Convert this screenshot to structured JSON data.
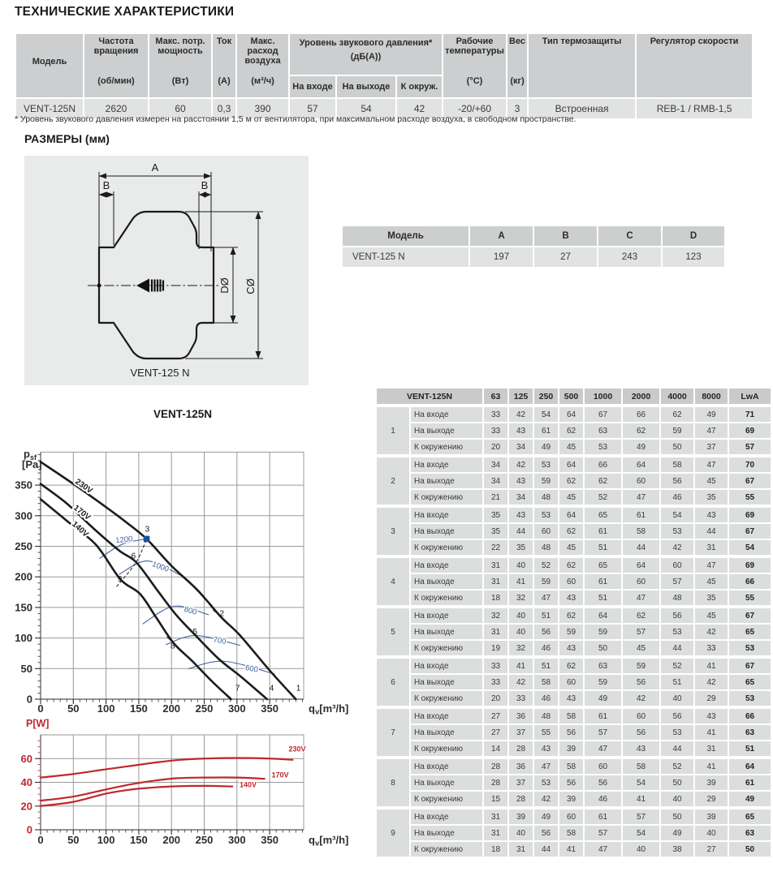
{
  "page": {
    "title": "ТЕХНИЧЕСКИЕ ХАРАКТЕРИСТИКИ",
    "dimensions_heading": "РАЗМЕРЫ (мм)"
  },
  "spec_table": {
    "columns": [
      {
        "name": "Модель",
        "unit": ""
      },
      {
        "name": "Частота вращения",
        "unit": "(об/мин)"
      },
      {
        "name": "Макс. потр. мощность",
        "unit": "(Вт)"
      },
      {
        "name": "Ток",
        "unit": "(А)"
      },
      {
        "name": "Макс. расход воздуха",
        "unit": "(м³/ч)"
      },
      {
        "name": "Уровень звукового давления*",
        "unit": "(дБ(А))",
        "subcolumns": [
          "На входе",
          "На выходе",
          "К окруж."
        ]
      },
      {
        "name": "Рабочие температуры",
        "unit": "(°С)"
      },
      {
        "name": "Вес",
        "unit": "(кг)"
      },
      {
        "name": "Тип термозащиты",
        "unit": ""
      },
      {
        "name": "Регулятор скорости",
        "unit": ""
      }
    ],
    "row": [
      "VENT-125N",
      "2620",
      "60",
      "0,3",
      "390",
      "57",
      "54",
      "42",
      "-20/+60",
      "3",
      "Встроенная",
      "REB-1 / RMB-1,5"
    ]
  },
  "footnote": "* Уровень звукового давления измерен на расстоянии 1,5 м от вентилятора, при максимальном расходе воздуха, в свободном пространстве.",
  "drawing": {
    "model_label": "VENT-125 N",
    "dim_a": "A",
    "dim_b": "B",
    "dim_c": "CØ",
    "dim_d": "DØ"
  },
  "dim_table": {
    "headers": [
      "Модель",
      "A",
      "B",
      "C",
      "D"
    ],
    "rows": [
      [
        "VENT-125 N",
        "197",
        "27",
        "243",
        "123"
      ]
    ]
  },
  "acoustic_table": {
    "model": "VENT-125N",
    "freq_headers": [
      "63",
      "125",
      "250",
      "500",
      "1000",
      "2000",
      "4000",
      "8000",
      "LwA"
    ],
    "row_labels": [
      "На входе",
      "На выходе",
      "К окружению"
    ],
    "groups": [
      {
        "n": "1",
        "rows": [
          [
            33,
            42,
            54,
            64,
            67,
            66,
            62,
            49,
            71
          ],
          [
            33,
            43,
            61,
            62,
            63,
            62,
            59,
            47,
            69
          ],
          [
            20,
            34,
            49,
            45,
            53,
            49,
            50,
            37,
            57
          ]
        ]
      },
      {
        "n": "2",
        "rows": [
          [
            34,
            42,
            53,
            64,
            66,
            64,
            58,
            47,
            70
          ],
          [
            34,
            43,
            59,
            62,
            62,
            60,
            56,
            45,
            67
          ],
          [
            21,
            34,
            48,
            45,
            52,
            47,
            46,
            35,
            55
          ]
        ]
      },
      {
        "n": "3",
        "rows": [
          [
            35,
            43,
            53,
            64,
            65,
            61,
            54,
            43,
            69
          ],
          [
            35,
            44,
            60,
            62,
            61,
            58,
            53,
            44,
            67
          ],
          [
            22,
            35,
            48,
            45,
            51,
            44,
            42,
            31,
            54
          ]
        ]
      },
      {
        "n": "4",
        "rows": [
          [
            31,
            40,
            52,
            62,
            65,
            64,
            60,
            47,
            69
          ],
          [
            31,
            41,
            59,
            60,
            61,
            60,
            57,
            45,
            66
          ],
          [
            18,
            32,
            47,
            43,
            51,
            47,
            48,
            35,
            55
          ]
        ]
      },
      {
        "n": "5",
        "rows": [
          [
            32,
            40,
            51,
            62,
            64,
            62,
            56,
            45,
            67
          ],
          [
            31,
            40,
            56,
            59,
            59,
            57,
            53,
            42,
            65
          ],
          [
            19,
            32,
            46,
            43,
            50,
            45,
            44,
            33,
            53
          ]
        ]
      },
      {
        "n": "6",
        "rows": [
          [
            33,
            41,
            51,
            62,
            63,
            59,
            52,
            41,
            67
          ],
          [
            33,
            42,
            58,
            60,
            59,
            56,
            51,
            42,
            65
          ],
          [
            20,
            33,
            46,
            43,
            49,
            42,
            40,
            29,
            53
          ]
        ]
      },
      {
        "n": "7",
        "rows": [
          [
            27,
            36,
            48,
            58,
            61,
            60,
            56,
            43,
            66
          ],
          [
            27,
            37,
            55,
            56,
            57,
            56,
            53,
            41,
            63
          ],
          [
            14,
            28,
            43,
            39,
            47,
            43,
            44,
            31,
            51
          ]
        ]
      },
      {
        "n": "8",
        "rows": [
          [
            28,
            36,
            47,
            58,
            60,
            58,
            52,
            41,
            64
          ],
          [
            28,
            37,
            53,
            56,
            56,
            54,
            50,
            39,
            61
          ],
          [
            15,
            28,
            42,
            39,
            46,
            41,
            40,
            29,
            49
          ]
        ]
      },
      {
        "n": "9",
        "rows": [
          [
            31,
            39,
            49,
            60,
            61,
            57,
            50,
            39,
            65
          ],
          [
            31,
            40,
            56,
            58,
            57,
            54,
            49,
            40,
            63
          ],
          [
            18,
            31,
            44,
            41,
            47,
            40,
            38,
            27,
            50
          ]
        ]
      }
    ]
  },
  "chart_data": [
    {
      "id": "pressure",
      "type": "line",
      "title": "VENT-125N",
      "xlabel": "qv[m³/h]",
      "ylabel": {
        "main": "p",
        "sub": "sf",
        "line2": "[Pa]"
      },
      "xlim": [
        0,
        402
      ],
      "ylim": [
        0,
        404
      ],
      "xticks": [
        0,
        50,
        100,
        150,
        200,
        250,
        300,
        350
      ],
      "yticks": [
        0,
        50,
        100,
        150,
        200,
        250,
        300,
        350
      ],
      "grid": true,
      "colors": {
        "curve": "#1c1c1c",
        "rpm": "#41629e",
        "marker": "#1d4f9e",
        "dashed": "#3c3c3c"
      },
      "series": [
        {
          "name": "230V",
          "label_pos": {
            "x": 64,
            "y": 345,
            "rot": 35
          },
          "points": [
            [
              0,
              388
            ],
            [
              50,
              352
            ],
            [
              100,
              314
            ],
            [
              130,
              290
            ],
            [
              162,
              262
            ],
            [
              200,
              218
            ],
            [
              240,
              178
            ],
            [
              276,
              134
            ],
            [
              305,
              104
            ],
            [
              350,
              47
            ],
            [
              390,
              0
            ]
          ]
        },
        {
          "name": "170V",
          "label_pos": {
            "x": 61,
            "y": 302,
            "rot": 38
          },
          "points": [
            [
              0,
              352
            ],
            [
              40,
              320
            ],
            [
              80,
              280
            ],
            [
              120,
              243
            ],
            [
              146,
              224
            ],
            [
              177,
              180
            ],
            [
              207,
              138
            ],
            [
              237,
              104
            ],
            [
              272,
              66
            ],
            [
              307,
              36
            ],
            [
              346,
              0
            ]
          ]
        },
        {
          "name": "140V",
          "label_pos": {
            "x": 58,
            "y": 275,
            "rot": 42
          },
          "points": [
            [
              0,
              327
            ],
            [
              42,
              290
            ],
            [
              85,
              252
            ],
            [
              122,
              196
            ],
            [
              152,
              172
            ],
            [
              177,
              133
            ],
            [
              203,
              92
            ],
            [
              232,
              62
            ],
            [
              262,
              29
            ],
            [
              291,
              0
            ]
          ]
        }
      ],
      "rpm_curves": [
        {
          "label": "1200",
          "label_pos": {
            "x": 128,
            "y": 257,
            "rot": -6
          },
          "points": [
            [
              90,
              230
            ],
            [
              124,
              253
            ],
            [
              160,
              262
            ]
          ]
        },
        {
          "label": "1000",
          "label_pos": {
            "x": 182,
            "y": 213,
            "rot": 20
          },
          "points": [
            [
              120,
              204
            ],
            [
              163,
              226
            ],
            [
              215,
              202
            ]
          ]
        },
        {
          "label": "800",
          "label_pos": {
            "x": 228,
            "y": 141,
            "rot": 16
          },
          "points": [
            [
              156,
              123
            ],
            [
              204,
              152
            ],
            [
              257,
              138
            ]
          ]
        },
        {
          "label": "700",
          "label_pos": {
            "x": 273,
            "y": 92,
            "rot": 10
          },
          "points": [
            [
              191,
              89
            ],
            [
              237,
              104
            ],
            [
              305,
              88
            ]
          ]
        },
        {
          "label": "600",
          "label_pos": {
            "x": 322,
            "y": 46,
            "rot": 10
          },
          "points": [
            [
              226,
              50
            ],
            [
              280,
              62
            ],
            [
              358,
              41
            ]
          ]
        }
      ],
      "operating_points": [
        {
          "n": "1",
          "x": 394,
          "y": 14
        },
        {
          "n": "2",
          "x": 277,
          "y": 136
        },
        {
          "n": "3",
          "x": 163,
          "y": 274
        },
        {
          "n": "4",
          "x": 353,
          "y": 14
        },
        {
          "n": "5",
          "x": 236,
          "y": 106
        },
        {
          "n": "6",
          "x": 142,
          "y": 230
        },
        {
          "n": "7",
          "x": 301,
          "y": 14
        },
        {
          "n": "8",
          "x": 202,
          "y": 83
        },
        {
          "n": "9",
          "x": 121,
          "y": 192
        }
      ],
      "tick_marks": [
        {
          "x": 268,
          "y": 142,
          "rot": 38
        },
        {
          "x": 230,
          "y": 112,
          "rot": 40
        },
        {
          "x": 197,
          "y": 98,
          "rot": 45
        }
      ],
      "marker": {
        "x": 162,
        "y": 262
      },
      "dashed_line": [
        [
          116,
          184
        ],
        [
          146,
          224
        ],
        [
          162,
          262
        ]
      ]
    },
    {
      "id": "power",
      "type": "line",
      "title": "",
      "xlabel": "qv[m³/h]",
      "ylabel": {
        "main": "P[W]"
      },
      "xlim": [
        0,
        402
      ],
      "ylim": [
        0,
        80
      ],
      "xticks": [
        0,
        50,
        100,
        150,
        200,
        250,
        300,
        350
      ],
      "yticks": [
        0,
        20,
        40,
        60
      ],
      "grid": true,
      "colors": {
        "curve": "#c0272d"
      },
      "series": [
        {
          "name": "230V",
          "label_pos": {
            "x": 379,
            "y": 66,
            "rot": 0
          },
          "points": [
            [
              0,
              44
            ],
            [
              50,
              47
            ],
            [
              100,
              51
            ],
            [
              140,
              54
            ],
            [
              180,
              57
            ],
            [
              215,
              59
            ],
            [
              250,
              60
            ],
            [
              300,
              60.5
            ],
            [
              350,
              60
            ],
            [
              385,
              59
            ]
          ]
        },
        {
          "name": "170V",
          "label_pos": {
            "x": 353,
            "y": 44,
            "rot": 0
          },
          "points": [
            [
              0,
              24.5
            ],
            [
              50,
              28
            ],
            [
              100,
              34
            ],
            [
              140,
              38.5
            ],
            [
              175,
              41.5
            ],
            [
              210,
              43.5
            ],
            [
              250,
              44
            ],
            [
              300,
              44
            ],
            [
              342,
              43
            ]
          ]
        },
        {
          "name": "140V",
          "label_pos": {
            "x": 304,
            "y": 36,
            "rot": 0
          },
          "points": [
            [
              0,
              20
            ],
            [
              50,
              23.5
            ],
            [
              100,
              30.5
            ],
            [
              140,
              34
            ],
            [
              170,
              35.5
            ],
            [
              200,
              36.5
            ],
            [
              250,
              37
            ],
            [
              293,
              36.5
            ]
          ]
        }
      ]
    }
  ]
}
